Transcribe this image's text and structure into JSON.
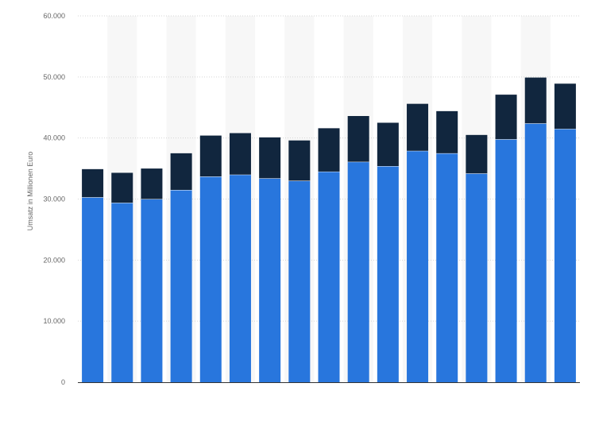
{
  "chart_data": {
    "type": "bar",
    "stacked": true,
    "title": "",
    "xlabel": "",
    "ylabel": "Umsatz in Millionen Euro",
    "ylim": [
      0,
      60000
    ],
    "yticks": [
      0,
      10000,
      20000,
      30000,
      40000,
      50000,
      60000
    ],
    "ytick_labels": [
      "0",
      "10.000",
      "20.000",
      "30.000",
      "40.000",
      "50.000",
      "60.000"
    ],
    "grid": true,
    "legend": "none",
    "categories": [
      "",
      "",
      "",
      "",
      "",
      "",
      "",
      "",
      "",
      "",
      "",
      "",
      "",
      "",
      "",
      "",
      ""
    ],
    "series": [
      {
        "color": "#2876dd",
        "values": [
          30300,
          29400,
          30000,
          31500,
          33700,
          34000,
          33400,
          33000,
          34500,
          36100,
          35400,
          37900,
          37500,
          34200,
          39800,
          42400,
          41500
        ]
      },
      {
        "color": "#11263e",
        "values": [
          4600,
          4900,
          5000,
          6000,
          6700,
          6800,
          6700,
          6600,
          7100,
          7500,
          7100,
          7700,
          6900,
          6300,
          7300,
          7500,
          7400
        ]
      }
    ]
  }
}
